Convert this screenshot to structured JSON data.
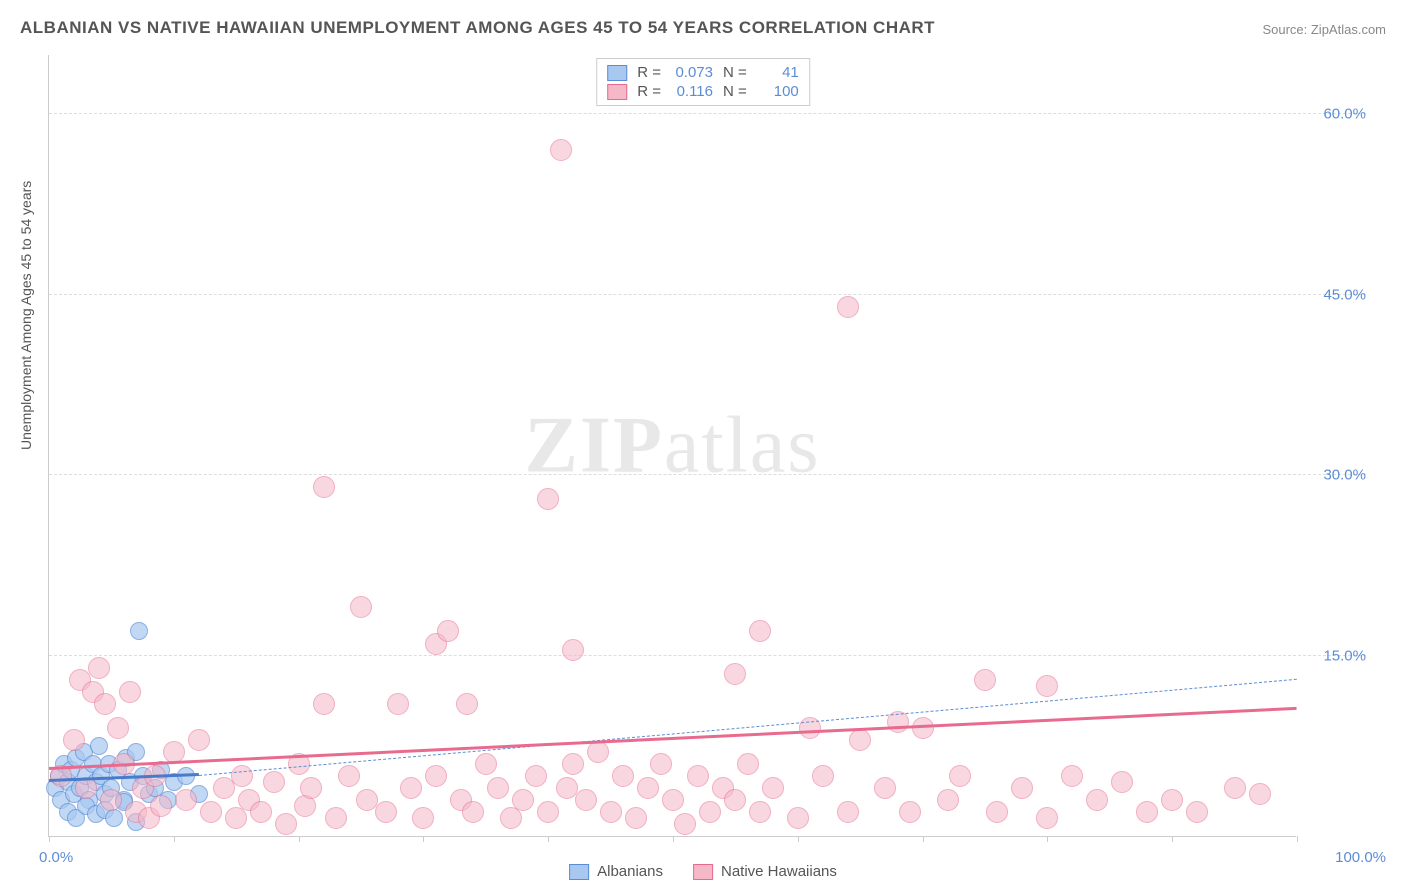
{
  "title": "ALBANIAN VS NATIVE HAWAIIAN UNEMPLOYMENT AMONG AGES 45 TO 54 YEARS CORRELATION CHART",
  "source": "Source: ZipAtlas.com",
  "ylabel": "Unemployment Among Ages 45 to 54 years",
  "watermark_bold": "ZIP",
  "watermark_light": "atlas",
  "xlim": [
    0,
    100
  ],
  "ylim": [
    0,
    65
  ],
  "ytick_values": [
    15,
    30,
    45,
    60
  ],
  "ytick_labels": [
    "15.0%",
    "30.0%",
    "45.0%",
    "60.0%"
  ],
  "xtick_values": [
    0,
    10,
    20,
    30,
    40,
    50,
    60,
    70,
    80,
    90,
    100
  ],
  "x_min_label": "0.0%",
  "x_max_label": "100.0%",
  "grid_color": "#dddddd",
  "axis_color": "#cccccc",
  "tick_label_color": "#5b8dd6",
  "series": [
    {
      "name": "Albanians",
      "color_fill": "#a8c8f0",
      "color_stroke": "#5b8dd6",
      "marker_radius": 9,
      "marker_opacity": 0.7,
      "R": "0.073",
      "N": "41",
      "regression": {
        "x1": 0,
        "y1": 4.5,
        "x2": 12,
        "y2": 5.0,
        "width": 3,
        "dash": false,
        "color": "#4a7bc8"
      },
      "extrapolation": {
        "x1": 12,
        "y1": 5.0,
        "x2": 100,
        "y2": 13.0,
        "width": 1,
        "dash": true,
        "color": "#5b8dd6"
      },
      "points": [
        [
          0.5,
          4
        ],
        [
          0.8,
          5
        ],
        [
          1,
          3
        ],
        [
          1.2,
          6
        ],
        [
          1.5,
          4.5
        ],
        [
          1.8,
          5.5
        ],
        [
          2,
          3.5
        ],
        [
          2.2,
          6.5
        ],
        [
          2.5,
          4
        ],
        [
          2.8,
          7
        ],
        [
          3,
          5
        ],
        [
          3.2,
          3
        ],
        [
          3.5,
          6
        ],
        [
          3.8,
          4.5
        ],
        [
          4,
          7.5
        ],
        [
          4.2,
          5
        ],
        [
          4.5,
          3.5
        ],
        [
          4.8,
          6
        ],
        [
          5,
          4
        ],
        [
          5.5,
          5.5
        ],
        [
          6,
          3
        ],
        [
          6.2,
          6.5
        ],
        [
          6.5,
          4.5
        ],
        [
          7,
          7
        ],
        [
          7.5,
          5
        ],
        [
          8,
          3.5
        ],
        [
          1.5,
          2
        ],
        [
          2.2,
          1.5
        ],
        [
          3,
          2.5
        ],
        [
          3.8,
          1.8
        ],
        [
          4.5,
          2.2
        ],
        [
          5.2,
          1.5
        ],
        [
          6,
          2.8
        ],
        [
          7,
          1.2
        ],
        [
          8.5,
          4
        ],
        [
          9,
          5.5
        ],
        [
          9.5,
          3
        ],
        [
          7.2,
          17
        ],
        [
          10,
          4.5
        ],
        [
          11,
          5
        ],
        [
          12,
          3.5
        ]
      ]
    },
    {
      "name": "Native Hawaiians",
      "color_fill": "#f5b8c8",
      "color_stroke": "#e86b8f",
      "marker_radius": 11,
      "marker_opacity": 0.55,
      "R": "0.116",
      "N": "100",
      "regression": {
        "x1": 0,
        "y1": 5.5,
        "x2": 100,
        "y2": 10.5,
        "width": 3,
        "dash": false,
        "color": "#e86b8f"
      },
      "points": [
        [
          1,
          5
        ],
        [
          2,
          8
        ],
        [
          2.5,
          13
        ],
        [
          3,
          4
        ],
        [
          3.5,
          12
        ],
        [
          4,
          14
        ],
        [
          4.5,
          11
        ],
        [
          5,
          3
        ],
        [
          5.5,
          9
        ],
        [
          6,
          6
        ],
        [
          6.5,
          12
        ],
        [
          7,
          2
        ],
        [
          7.5,
          4
        ],
        [
          8,
          1.5
        ],
        [
          8.5,
          5
        ],
        [
          9,
          2.5
        ],
        [
          10,
          7
        ],
        [
          11,
          3
        ],
        [
          12,
          8
        ],
        [
          13,
          2
        ],
        [
          14,
          4
        ],
        [
          15,
          1.5
        ],
        [
          15.5,
          5
        ],
        [
          16,
          3
        ],
        [
          17,
          2
        ],
        [
          18,
          4.5
        ],
        [
          19,
          1
        ],
        [
          20,
          6
        ],
        [
          20.5,
          2.5
        ],
        [
          21,
          4
        ],
        [
          22,
          29
        ],
        [
          22,
          11
        ],
        [
          23,
          1.5
        ],
        [
          24,
          5
        ],
        [
          25,
          19
        ],
        [
          25.5,
          3
        ],
        [
          27,
          2
        ],
        [
          28,
          11
        ],
        [
          29,
          4
        ],
        [
          30,
          1.5
        ],
        [
          31,
          16
        ],
        [
          31,
          5
        ],
        [
          32,
          17
        ],
        [
          33,
          3
        ],
        [
          33.5,
          11
        ],
        [
          34,
          2
        ],
        [
          35,
          6
        ],
        [
          36,
          4
        ],
        [
          37,
          1.5
        ],
        [
          38,
          3
        ],
        [
          39,
          5
        ],
        [
          40,
          28
        ],
        [
          40,
          2
        ],
        [
          41,
          57
        ],
        [
          41.5,
          4
        ],
        [
          42,
          15.5
        ],
        [
          42,
          6
        ],
        [
          43,
          3
        ],
        [
          44,
          7
        ],
        [
          45,
          2
        ],
        [
          46,
          5
        ],
        [
          47,
          1.5
        ],
        [
          48,
          4
        ],
        [
          49,
          6
        ],
        [
          50,
          3
        ],
        [
          51,
          1
        ],
        [
          52,
          5
        ],
        [
          53,
          2
        ],
        [
          54,
          4
        ],
        [
          55,
          3
        ],
        [
          55,
          13.5
        ],
        [
          56,
          6
        ],
        [
          57,
          2
        ],
        [
          57,
          17
        ],
        [
          58,
          4
        ],
        [
          60,
          1.5
        ],
        [
          61,
          9
        ],
        [
          62,
          5
        ],
        [
          64,
          44
        ],
        [
          64,
          2
        ],
        [
          65,
          8
        ],
        [
          67,
          4
        ],
        [
          68,
          9.5
        ],
        [
          69,
          2
        ],
        [
          70,
          9
        ],
        [
          72,
          3
        ],
        [
          73,
          5
        ],
        [
          75,
          13
        ],
        [
          76,
          2
        ],
        [
          78,
          4
        ],
        [
          80,
          12.5
        ],
        [
          80,
          1.5
        ],
        [
          82,
          5
        ],
        [
          84,
          3
        ],
        [
          86,
          4.5
        ],
        [
          88,
          2
        ],
        [
          90,
          3
        ],
        [
          92,
          2
        ],
        [
          95,
          4
        ],
        [
          97,
          3.5
        ]
      ]
    }
  ],
  "bottom_legend": [
    {
      "label": "Albanians",
      "fill": "#a8c8f0",
      "stroke": "#5b8dd6"
    },
    {
      "label": "Native Hawaiians",
      "fill": "#f5b8c8",
      "stroke": "#e86b8f"
    }
  ]
}
